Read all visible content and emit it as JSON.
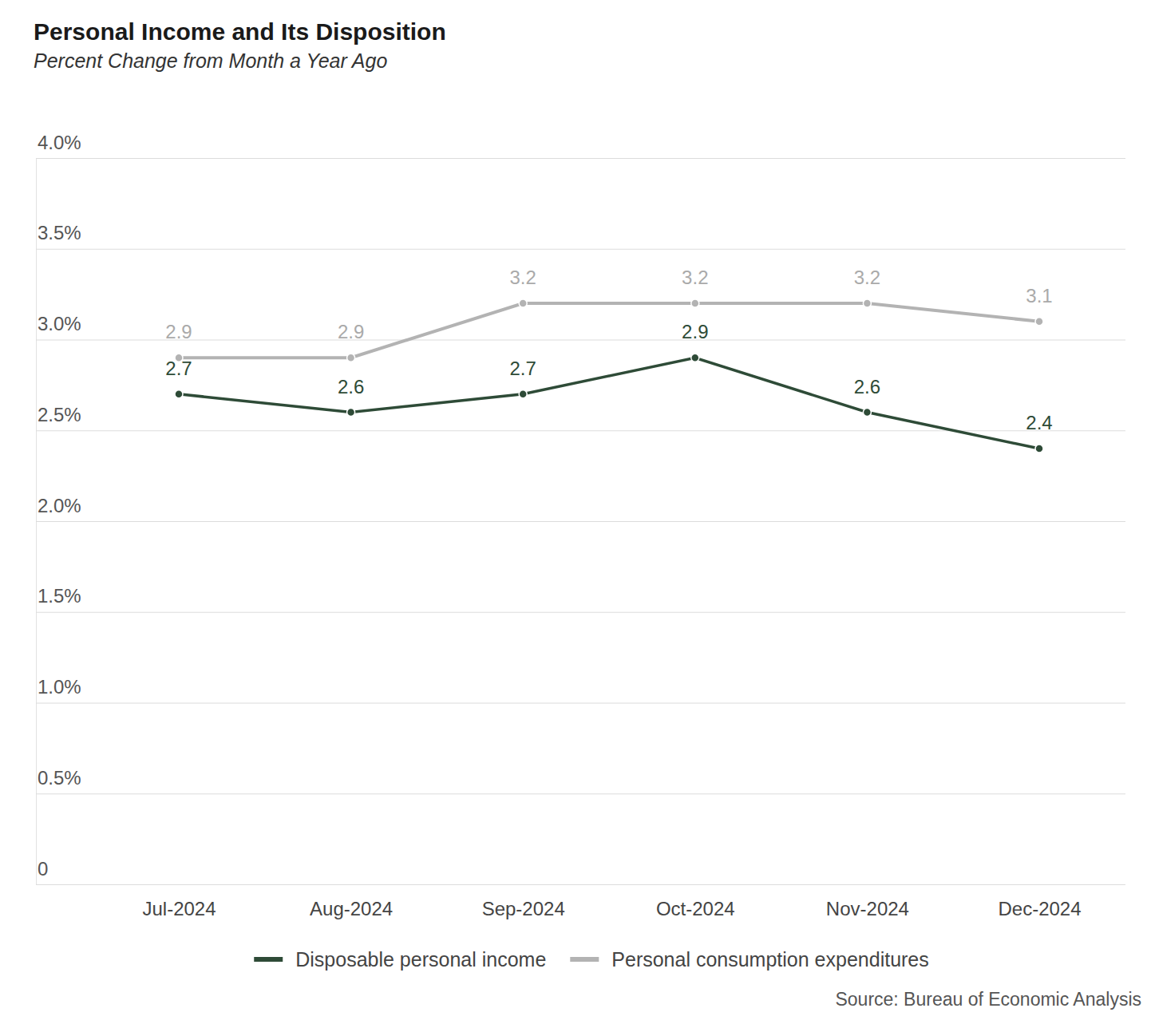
{
  "chart_data": {
    "type": "line",
    "title": "Personal Income and Its Disposition",
    "subtitle": "Percent Change from Month a Year Ago",
    "source": "Source: Bureau of Economic Analysis",
    "categories": [
      "Jul-2024",
      "Aug-2024",
      "Sep-2024",
      "Oct-2024",
      "Nov-2024",
      "Dec-2024"
    ],
    "series": [
      {
        "name": "Disposable personal income",
        "color": "#2e4b37",
        "values": [
          2.7,
          2.6,
          2.7,
          2.9,
          2.6,
          2.4
        ]
      },
      {
        "name": "Personal consumption expenditures",
        "color": "#b3b3b3",
        "values": [
          2.9,
          2.9,
          3.2,
          3.2,
          3.2,
          3.1
        ]
      }
    ],
    "ylim": [
      0,
      4
    ],
    "yticks": [
      0,
      {
        "value": 0.5,
        "label": "0.5%"
      },
      {
        "value": 1,
        "label": "1.0%"
      },
      {
        "value": 1.5,
        "label": "1.5%"
      },
      {
        "value": 2,
        "label": "2.0%"
      },
      {
        "value": 2.5,
        "label": "2.5%"
      },
      {
        "value": 3,
        "label": "3.0%"
      },
      {
        "value": 3.5,
        "label": "3.5%"
      },
      {
        "value": 4,
        "label": "4.0%"
      }
    ],
    "grid": true,
    "legend": "bottom",
    "data_labels": true,
    "marker": "circle"
  }
}
